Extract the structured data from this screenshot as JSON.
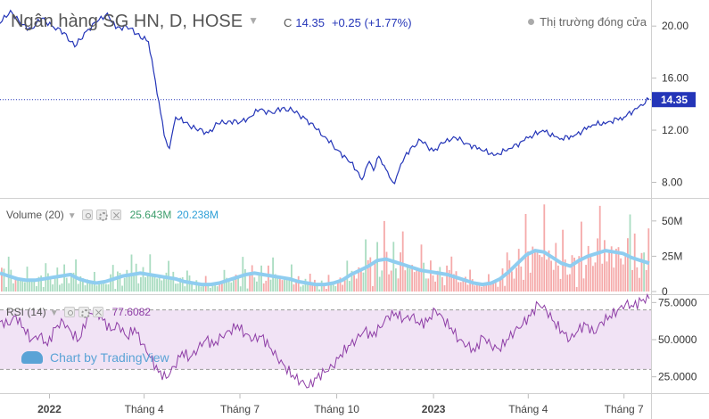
{
  "header": {
    "symbol_title": "Ngân hàng SG HN, D, HOSE",
    "close_label": "C",
    "close_value": "14.35",
    "change": "+0.25 (+1.77%)",
    "market_status": "Thị trường đóng cửa"
  },
  "last_price_tag": "14.35",
  "volume_pane": {
    "name": "Volume (20)",
    "value_1": "25.643M",
    "value_2": "20.238M"
  },
  "rsi_pane": {
    "name": "RSI (14)",
    "value": "77.6082"
  },
  "watermark": "Chart by TradingView",
  "colors": {
    "price_line": "#2435b8",
    "volume_up": "#a9dcc1",
    "volume_down": "#f5aaaa",
    "volume_ma": "#8fcdf0",
    "rsi_line": "#8e3ea6",
    "rsi_band": "#f1e3f5",
    "price_tag_bg": "#2435b8"
  },
  "chart_data": [
    {
      "type": "line",
      "name": "price",
      "y_ticks": [
        "8.00",
        "12.00",
        "16.00",
        "20.00"
      ],
      "ylim": [
        6.8,
        22
      ],
      "last_value": 14.35,
      "x_ticks": [
        "2022",
        "Tháng 4",
        "Tháng 7",
        "Tháng 10",
        "2023",
        "Tháng 4",
        "Tháng 7"
      ],
      "x": [
        "2021-11-15",
        "2021-11-25",
        "2021-12-05",
        "2021-12-15",
        "2021-12-25",
        "2022-01-05",
        "2022-01-15",
        "2022-01-25",
        "2022-02-05",
        "2022-02-15",
        "2022-02-25",
        "2022-03-05",
        "2022-03-15",
        "2022-03-25",
        "2022-04-05",
        "2022-04-10",
        "2022-04-15",
        "2022-04-20",
        "2022-04-25",
        "2022-05-01",
        "2022-05-10",
        "2022-05-20",
        "2022-06-01",
        "2022-06-10",
        "2022-06-20",
        "2022-07-01",
        "2022-07-10",
        "2022-07-20",
        "2022-08-01",
        "2022-08-10",
        "2022-08-20",
        "2022-09-01",
        "2022-09-10",
        "2022-09-20",
        "2022-10-01",
        "2022-10-10",
        "2022-10-20",
        "2022-10-25",
        "2022-11-01",
        "2022-11-05",
        "2022-11-10",
        "2022-11-15",
        "2022-11-20",
        "2022-11-25",
        "2022-12-01",
        "2022-12-10",
        "2022-12-20",
        "2023-01-01",
        "2023-01-10",
        "2023-01-20",
        "2023-02-01",
        "2023-02-15",
        "2023-03-01",
        "2023-03-15",
        "2023-04-01",
        "2023-04-15",
        "2023-05-01",
        "2023-05-15",
        "2023-06-01",
        "2023-06-15",
        "2023-07-01",
        "2023-07-15",
        "2023-07-25"
      ],
      "values": [
        20.2,
        21.2,
        20.1,
        19.8,
        20.6,
        19.9,
        19.5,
        18.4,
        19.6,
        20.3,
        21.0,
        19.8,
        20.0,
        19.4,
        18.8,
        16.5,
        14.2,
        11.6,
        10.6,
        13.0,
        12.6,
        12.1,
        11.8,
        12.5,
        12.7,
        12.6,
        13.0,
        13.6,
        13.3,
        13.7,
        13.5,
        12.9,
        12.2,
        11.5,
        10.5,
        9.9,
        8.9,
        8.2,
        9.6,
        8.9,
        10.0,
        9.3,
        8.4,
        7.9,
        9.4,
        10.6,
        11.2,
        10.4,
        11.0,
        11.5,
        11.0,
        10.5,
        10.1,
        10.6,
        11.4,
        12.0,
        11.3,
        11.6,
        12.4,
        12.6,
        13.0,
        13.8,
        14.35
      ]
    },
    {
      "type": "bar",
      "name": "volume",
      "y_ticks": [
        "0",
        "25M",
        "50M"
      ],
      "ylim": [
        0,
        60
      ],
      "unit": "M",
      "ma_values": [
        13,
        11,
        9,
        8,
        8,
        9,
        10,
        11,
        12,
        9,
        7,
        6,
        7,
        9,
        11,
        12,
        13,
        12,
        11,
        10,
        9,
        7,
        6,
        5,
        5,
        6,
        8,
        10,
        12,
        13,
        12,
        11,
        10,
        9,
        7,
        6,
        5,
        5,
        6,
        8,
        12,
        15,
        18,
        22,
        23,
        21,
        19,
        17,
        15,
        14,
        13,
        12,
        10,
        8,
        6,
        5,
        6,
        9,
        14,
        20,
        26,
        29,
        28,
        24,
        20,
        18,
        22,
        25,
        27,
        29,
        28,
        27,
        24,
        22,
        20
      ]
    },
    {
      "type": "line",
      "name": "rsi",
      "y_ticks": [
        "25.0000",
        "50.0000",
        "75.0000"
      ],
      "ylim": [
        14,
        80
      ],
      "band": [
        30,
        70
      ],
      "last_value": 77.6082,
      "values": [
        62,
        60,
        66,
        58,
        50,
        53,
        46,
        58,
        62,
        55,
        50,
        65,
        70,
        63,
        56,
        60,
        52,
        58,
        47,
        38,
        28,
        24,
        32,
        42,
        38,
        44,
        50,
        46,
        52,
        56,
        60,
        54,
        50,
        52,
        45,
        38,
        32,
        26,
        22,
        18,
        24,
        28,
        32,
        40,
        46,
        50,
        56,
        52,
        58,
        66,
        68,
        64,
        66,
        60,
        62,
        70,
        64,
        58,
        50,
        46,
        42,
        52,
        46,
        44,
        50,
        56,
        60,
        66,
        74,
        70,
        62,
        56,
        50,
        56,
        60,
        54,
        62,
        66,
        70,
        74,
        72,
        76,
        77.6
      ]
    }
  ]
}
